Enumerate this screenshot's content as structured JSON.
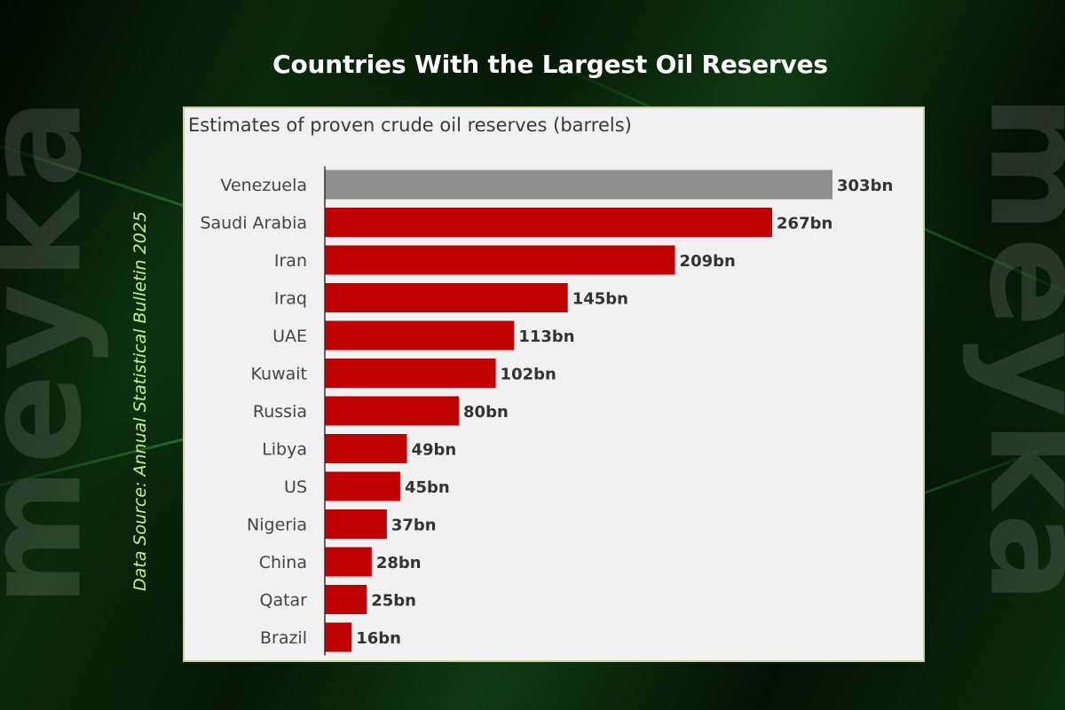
{
  "page": {
    "title": "Countries With the Largest Oil Reserves",
    "source": "Data Source: Annual Statistical Bulletin 2025",
    "watermark": "meyka"
  },
  "colors": {
    "bar": "#c00000",
    "highlight_bar": "#8f8f8f",
    "panel_background": "#f1f1f1",
    "page_background": "#07200a",
    "source_text": "#c8f08a"
  },
  "chart_data": {
    "type": "bar",
    "orientation": "horizontal",
    "subtitle": "Estimates of proven crude oil reserves (barrels)",
    "unit": "bn",
    "categories": [
      "Venezuela",
      "Saudi Arabia",
      "Iran",
      "Iraq",
      "UAE",
      "Kuwait",
      "Russia",
      "Libya",
      "US",
      "Nigeria",
      "China",
      "Qatar",
      "Brazil"
    ],
    "values": [
      303,
      267,
      209,
      145,
      113,
      102,
      80,
      49,
      45,
      37,
      28,
      25,
      16
    ],
    "value_labels": [
      "303bn",
      "267bn",
      "209bn",
      "145bn",
      "113bn",
      "102bn",
      "80bn",
      "49bn",
      "45bn",
      "37bn",
      "28bn",
      "25bn",
      "16bn"
    ],
    "highlighted": [
      "Venezuela"
    ],
    "xlim": [
      0,
      303
    ],
    "grid": false,
    "legend": "none"
  }
}
